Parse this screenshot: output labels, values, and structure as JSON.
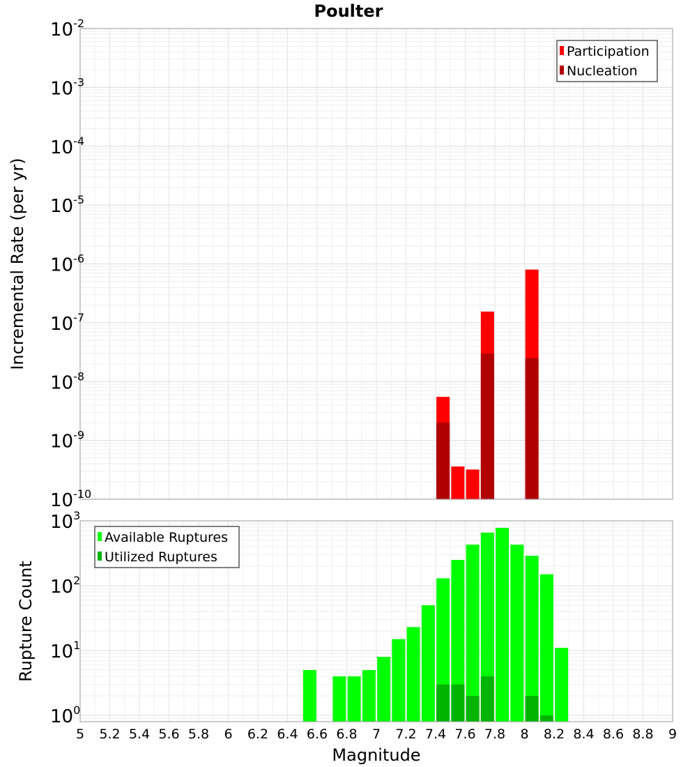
{
  "chart_data": [
    {
      "type": "bar",
      "title": "Poulter",
      "xlabel": "",
      "ylabel": "Incremental Rate (per yr)",
      "yscale": "log",
      "ylim": [
        1e-10,
        0.01
      ],
      "xlim": [
        5,
        9
      ],
      "ytick_labels": [
        {
          "base": "10",
          "exp": "-10",
          "value": 1e-10
        },
        {
          "base": "10",
          "exp": "-9",
          "value": 1e-09
        },
        {
          "base": "10",
          "exp": "-8",
          "value": 1e-08
        },
        {
          "base": "10",
          "exp": "-7",
          "value": 1e-07
        },
        {
          "base": "10",
          "exp": "-6",
          "value": 1e-06
        },
        {
          "base": "10",
          "exp": "-5",
          "value": 1e-05
        },
        {
          "base": "10",
          "exp": "-4",
          "value": 0.0001
        },
        {
          "base": "10",
          "exp": "-3",
          "value": 0.001
        },
        {
          "base": "10",
          "exp": "-2",
          "value": 0.01
        }
      ],
      "legend_position": "top-right",
      "series": [
        {
          "name": "Participation",
          "color": "#ff0000",
          "x": [
            7.45,
            7.55,
            7.65,
            7.75,
            8.05
          ],
          "values": [
            5.5e-09,
            3.6e-10,
            3.2e-10,
            1.55e-07,
            8e-07
          ]
        },
        {
          "name": "Nucleation",
          "color": "#b00000",
          "x": [
            7.45,
            7.75,
            8.05
          ],
          "values": [
            2e-09,
            3e-08,
            2.5e-08
          ]
        }
      ]
    },
    {
      "type": "bar",
      "title": "",
      "xlabel": "Magnitude",
      "ylabel": "Rupture Count",
      "yscale": "log",
      "ylim": [
        0.8,
        1000
      ],
      "xlim": [
        5,
        9
      ],
      "ytick_labels": [
        {
          "base": "10",
          "exp": "0",
          "value": 1
        },
        {
          "base": "10",
          "exp": "1",
          "value": 10
        },
        {
          "base": "10",
          "exp": "2",
          "value": 100
        },
        {
          "base": "10",
          "exp": "3",
          "value": 1000
        }
      ],
      "xtick_labels": [
        "5",
        "5.2",
        "5.4",
        "5.6",
        "5.8",
        "6",
        "6.2",
        "6.4",
        "6.6",
        "6.8",
        "7",
        "7.2",
        "7.4",
        "7.6",
        "7.8",
        "8",
        "8.2",
        "8.4",
        "8.6",
        "8.8",
        "9"
      ],
      "legend_position": "top-left",
      "series": [
        {
          "name": "Available Ruptures",
          "color": "#00ff00",
          "x": [
            6.55,
            6.75,
            6.85,
            6.95,
            7.05,
            7.15,
            7.25,
            7.35,
            7.45,
            7.55,
            7.65,
            7.75,
            7.85,
            7.95,
            8.05,
            8.15,
            8.25
          ],
          "values": [
            5,
            4,
            4,
            5,
            8,
            15,
            23,
            50,
            130,
            250,
            430,
            660,
            780,
            430,
            290,
            150,
            11
          ]
        },
        {
          "name": "Utilized Ruptures",
          "color": "#00b400",
          "x": [
            7.45,
            7.55,
            7.65,
            7.75,
            8.05,
            8.15
          ],
          "values": [
            3,
            3,
            2,
            4,
            2,
            1
          ]
        }
      ]
    }
  ]
}
